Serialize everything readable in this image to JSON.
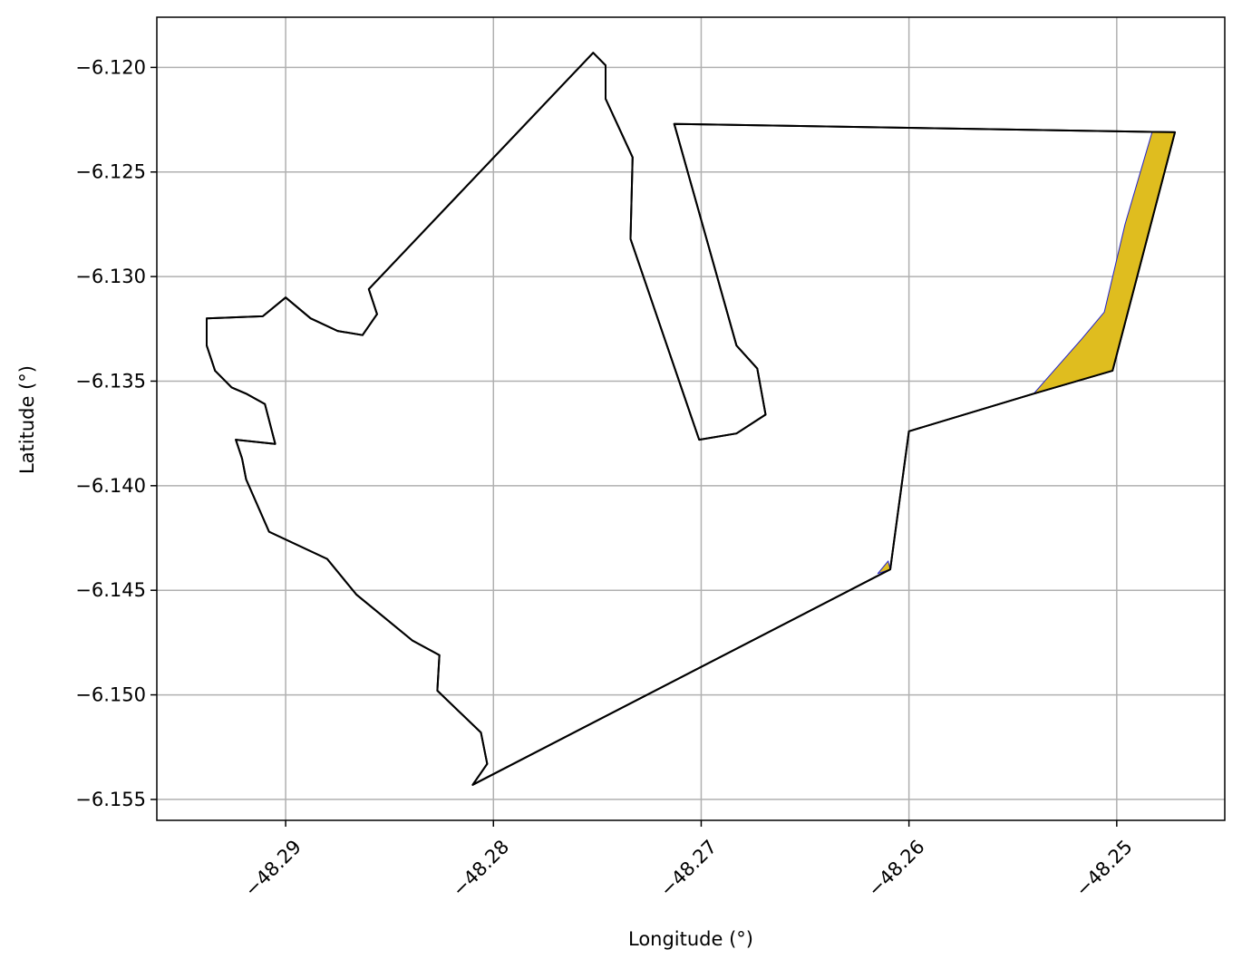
{
  "chart_data": {
    "type": "map",
    "title": "",
    "xlabel": "Longitude (°)",
    "ylabel": "Latitude (°)",
    "xlim": [
      -48.2962,
      -48.2448
    ],
    "ylim": [
      -6.156,
      -6.1176
    ],
    "grid": true,
    "x_ticks": [
      {
        "value": -48.29,
        "label": "−48.29"
      },
      {
        "value": -48.28,
        "label": "−48.28"
      },
      {
        "value": -48.27,
        "label": "−48.27"
      },
      {
        "value": -48.26,
        "label": "−48.26"
      },
      {
        "value": -48.25,
        "label": "−48.25"
      }
    ],
    "y_ticks": [
      {
        "value": -6.12,
        "label": "−6.120"
      },
      {
        "value": -6.125,
        "label": "−6.125"
      },
      {
        "value": -6.13,
        "label": "−6.130"
      },
      {
        "value": -6.135,
        "label": "−6.135"
      },
      {
        "value": -6.14,
        "label": "−6.140"
      },
      {
        "value": -6.145,
        "label": "−6.145"
      },
      {
        "value": -6.15,
        "label": "−6.150"
      },
      {
        "value": -6.155,
        "label": "−6.155"
      }
    ],
    "colors": {
      "outline": "#000000",
      "overlap_fill": "#dfbd1f",
      "overlap_edge": "#2222cc",
      "grid": "#b0b0b0"
    },
    "polygons": [
      {
        "name": "",
        "fill": "none",
        "stroke": "#000000",
        "points": [
          [
            -48.2752,
            -6.1193
          ],
          [
            -48.2746,
            -6.1199
          ],
          [
            -48.2746,
            -6.1215
          ],
          [
            -48.2733,
            -6.1243
          ],
          [
            -48.2734,
            -6.1282
          ],
          [
            -48.2701,
            -6.1378
          ],
          [
            -48.2683,
            -6.1375
          ],
          [
            -48.2669,
            -6.1366
          ],
          [
            -48.2673,
            -6.1344
          ],
          [
            -48.2683,
            -6.1333
          ],
          [
            -48.2713,
            -6.1227
          ],
          [
            -48.2472,
            -6.1231
          ],
          [
            -48.2502,
            -6.1345
          ],
          [
            -48.254,
            -6.1356
          ],
          [
            -48.26,
            -6.1374
          ],
          [
            -48.2609,
            -6.144
          ],
          [
            -48.281,
            -6.1543
          ],
          [
            -48.2803,
            -6.1533
          ],
          [
            -48.2806,
            -6.1518
          ],
          [
            -48.2827,
            -6.1498
          ],
          [
            -48.2826,
            -6.1481
          ],
          [
            -48.2839,
            -6.1474
          ],
          [
            -48.2866,
            -6.1452
          ],
          [
            -48.288,
            -6.1435
          ],
          [
            -48.2908,
            -6.1422
          ],
          [
            -48.2919,
            -6.1397
          ],
          [
            -48.2921,
            -6.1387
          ],
          [
            -48.2924,
            -6.1378
          ],
          [
            -48.2905,
            -6.138
          ],
          [
            -48.291,
            -6.1361
          ],
          [
            -48.2919,
            -6.1356
          ],
          [
            -48.2926,
            -6.1353
          ],
          [
            -48.2934,
            -6.1345
          ],
          [
            -48.2938,
            -6.1333
          ],
          [
            -48.2938,
            -6.132
          ],
          [
            -48.2911,
            -6.1319
          ],
          [
            -48.29,
            -6.131
          ],
          [
            -48.2888,
            -6.132
          ],
          [
            -48.2875,
            -6.1326
          ],
          [
            -48.2863,
            -6.1328
          ],
          [
            -48.2856,
            -6.1318
          ],
          [
            -48.286,
            -6.1306
          ],
          [
            -48.2752,
            -6.1193
          ]
        ]
      },
      {
        "name": "",
        "fill": "#dfbd1f",
        "stroke": "#2222cc",
        "points": [
          [
            -48.2483,
            -6.1231
          ],
          [
            -48.2472,
            -6.1231
          ],
          [
            -48.2502,
            -6.1345
          ],
          [
            -48.254,
            -6.1356
          ],
          [
            -48.2517,
            -6.133
          ],
          [
            -48.2506,
            -6.1317
          ],
          [
            -48.2496,
            -6.1275
          ],
          [
            -48.2483,
            -6.1231
          ]
        ]
      },
      {
        "name": "",
        "fill": "#dfbd1f",
        "stroke": "#2222cc",
        "points": [
          [
            -48.261,
            -6.1436
          ],
          [
            -48.2609,
            -6.144
          ],
          [
            -48.2615,
            -6.1442
          ],
          [
            -48.261,
            -6.1436
          ]
        ]
      }
    ]
  }
}
